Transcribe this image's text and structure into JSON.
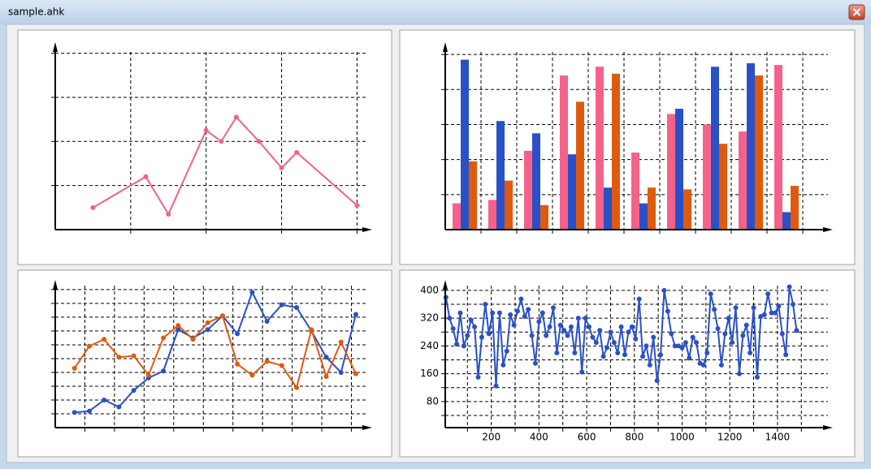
{
  "window": {
    "title": "sample.ahk"
  },
  "chart_data": [
    {
      "type": "line",
      "xlim": [
        0,
        4.2
      ],
      "ylim": [
        0,
        85
      ],
      "xgrid": [
        1,
        2,
        3,
        4
      ],
      "ygrid": [
        20,
        40,
        60,
        80
      ],
      "x": [
        0.5,
        1.2,
        1.5,
        2,
        2.2,
        2.4,
        2.7,
        3,
        3.2,
        4
      ],
      "series": [
        {
          "color": "#f0628a",
          "values": [
            10,
            24,
            7,
            45,
            40,
            51,
            40,
            28,
            35,
            11
          ]
        }
      ]
    },
    {
      "type": "bar",
      "ylim": [
        0,
        107
      ],
      "ygrid": [
        20,
        40,
        60,
        80,
        100
      ],
      "categories": [
        null,
        null,
        null,
        null,
        null,
        null,
        null,
        null,
        null,
        null
      ],
      "series": [
        {
          "color": "#f4628a",
          "values": [
            15,
            17,
            45,
            88,
            93,
            44,
            66,
            60,
            56,
            94
          ]
        },
        {
          "color": "#2a50c8",
          "values": [
            97,
            62,
            55,
            43,
            24,
            15,
            69,
            93,
            95,
            10
          ]
        },
        {
          "color": "#e05a0e",
          "values": [
            39,
            28,
            14,
            73,
            89,
            24,
            23,
            49,
            88,
            25
          ]
        }
      ]
    },
    {
      "type": "line",
      "xlim": [
        0,
        21.4
      ],
      "ylim": [
        0,
        107
      ],
      "xgrid": [
        2,
        4,
        6,
        8,
        10,
        12,
        14,
        16,
        18,
        20
      ],
      "ygrid": [
        10,
        20,
        30,
        40,
        50,
        60,
        70,
        80,
        90,
        100
      ],
      "x": [
        1.3,
        2.3,
        3.3,
        4.3,
        5.3,
        6.3,
        7.3,
        8.3,
        9.3,
        10.3,
        11.3,
        12.3,
        13.3,
        14.3,
        15.3,
        16.3,
        17.3,
        18.3,
        19.3,
        20.3
      ],
      "series": [
        {
          "color": "#2a50c8",
          "values": [
            11,
            12,
            20,
            15,
            27,
            36,
            41,
            71,
            65,
            71,
            81,
            68,
            98,
            77,
            89,
            87,
            70,
            51,
            40,
            82
          ]
        },
        {
          "color": "#e05a0e",
          "values": [
            43,
            59,
            64,
            51,
            52,
            38,
            65,
            74,
            64,
            76,
            81,
            46,
            38,
            48,
            45,
            29,
            71,
            37,
            62,
            39
          ]
        }
      ]
    },
    {
      "type": "line",
      "xlim": [
        7,
        1632
      ],
      "ylim": [
        5,
        430
      ],
      "xticks": [
        200,
        400,
        600,
        800,
        1000,
        1200,
        1400
      ],
      "xgrid": [
        100,
        300,
        500,
        700,
        900,
        1100,
        1300,
        1500
      ],
      "yticks": [
        80,
        160,
        240,
        320,
        400
      ],
      "ygrid": [
        40,
        120,
        200,
        280,
        360
      ],
      "x": [
        10,
        25,
        40,
        55,
        70,
        85,
        100,
        115,
        130,
        145,
        160,
        175,
        190,
        205,
        220,
        235,
        250,
        265,
        280,
        295,
        310,
        325,
        340,
        355,
        370,
        385,
        400,
        415,
        430,
        445,
        460,
        475,
        490,
        505,
        520,
        535,
        550,
        565,
        580,
        595,
        610,
        625,
        640,
        655,
        670,
        685,
        700,
        715,
        730,
        745,
        760,
        775,
        790,
        805,
        820,
        835,
        850,
        865,
        880,
        895,
        910,
        925,
        940,
        955,
        970,
        985,
        1000,
        1015,
        1030,
        1045,
        1060,
        1075,
        1090,
        1105,
        1120,
        1135,
        1150,
        1165,
        1180,
        1195,
        1210,
        1225,
        1240,
        1255,
        1270,
        1285,
        1300,
        1315,
        1330,
        1345,
        1360,
        1375,
        1390,
        1405,
        1420,
        1435,
        1450,
        1465,
        1480
      ],
      "series": [
        {
          "color": "#2a50c8",
          "values": [
            380,
            320,
            290,
            245,
            335,
            240,
            270,
            315,
            295,
            150,
            265,
            360,
            275,
            335,
            125,
            335,
            185,
            225,
            330,
            300,
            340,
            375,
            325,
            345,
            270,
            190,
            310,
            335,
            270,
            295,
            350,
            220,
            300,
            285,
            270,
            295,
            220,
            320,
            165,
            320,
            295,
            265,
            250,
            285,
            210,
            235,
            280,
            250,
            220,
            295,
            215,
            280,
            295,
            260,
            375,
            210,
            240,
            185,
            265,
            140,
            215,
            400,
            340,
            275,
            240,
            240,
            235,
            250,
            205,
            265,
            250,
            190,
            185,
            220,
            390,
            345,
            290,
            185,
            275,
            320,
            250,
            350,
            160,
            270,
            300,
            220,
            350,
            150,
            325,
            330,
            390,
            335,
            335,
            355,
            275,
            215,
            410,
            360,
            285
          ]
        }
      ]
    }
  ]
}
